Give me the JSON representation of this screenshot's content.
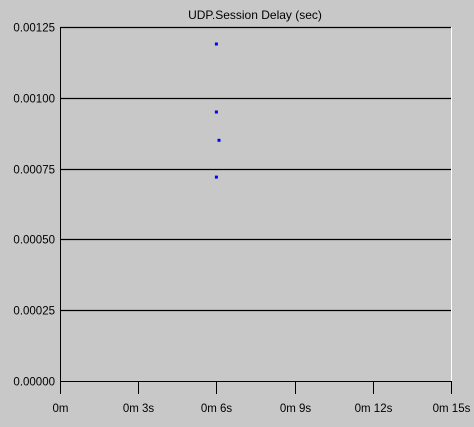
{
  "chart_data": {
    "type": "scatter",
    "title": "UDP.Session Delay (sec)",
    "xlabel": "",
    "ylabel": "",
    "xlim": [
      0,
      15
    ],
    "ylim": [
      0,
      0.00125
    ],
    "x_ticks": [
      {
        "value": 0,
        "label": "0m"
      },
      {
        "value": 3,
        "label": "0m 3s"
      },
      {
        "value": 6,
        "label": "0m 6s"
      },
      {
        "value": 9,
        "label": "0m 9s"
      },
      {
        "value": 12,
        "label": "0m 12s"
      },
      {
        "value": 15,
        "label": "0m 15s"
      }
    ],
    "y_ticks": [
      {
        "value": 0,
        "label": "0.00000"
      },
      {
        "value": 0.00025,
        "label": "0.00025"
      },
      {
        "value": 0.0005,
        "label": "0.00050"
      },
      {
        "value": 0.00075,
        "label": "0.00075"
      },
      {
        "value": 0.001,
        "label": "0.00100"
      },
      {
        "value": 0.00125,
        "label": "0.00125"
      }
    ],
    "grid": true,
    "series": [
      {
        "color": "#0000ff",
        "points": [
          {
            "x": 6.0,
            "y": 0.00119
          },
          {
            "x": 6.0,
            "y": 0.00095
          },
          {
            "x": 6.1,
            "y": 0.00085
          },
          {
            "x": 6.0,
            "y": 0.00072
          }
        ]
      }
    ]
  }
}
